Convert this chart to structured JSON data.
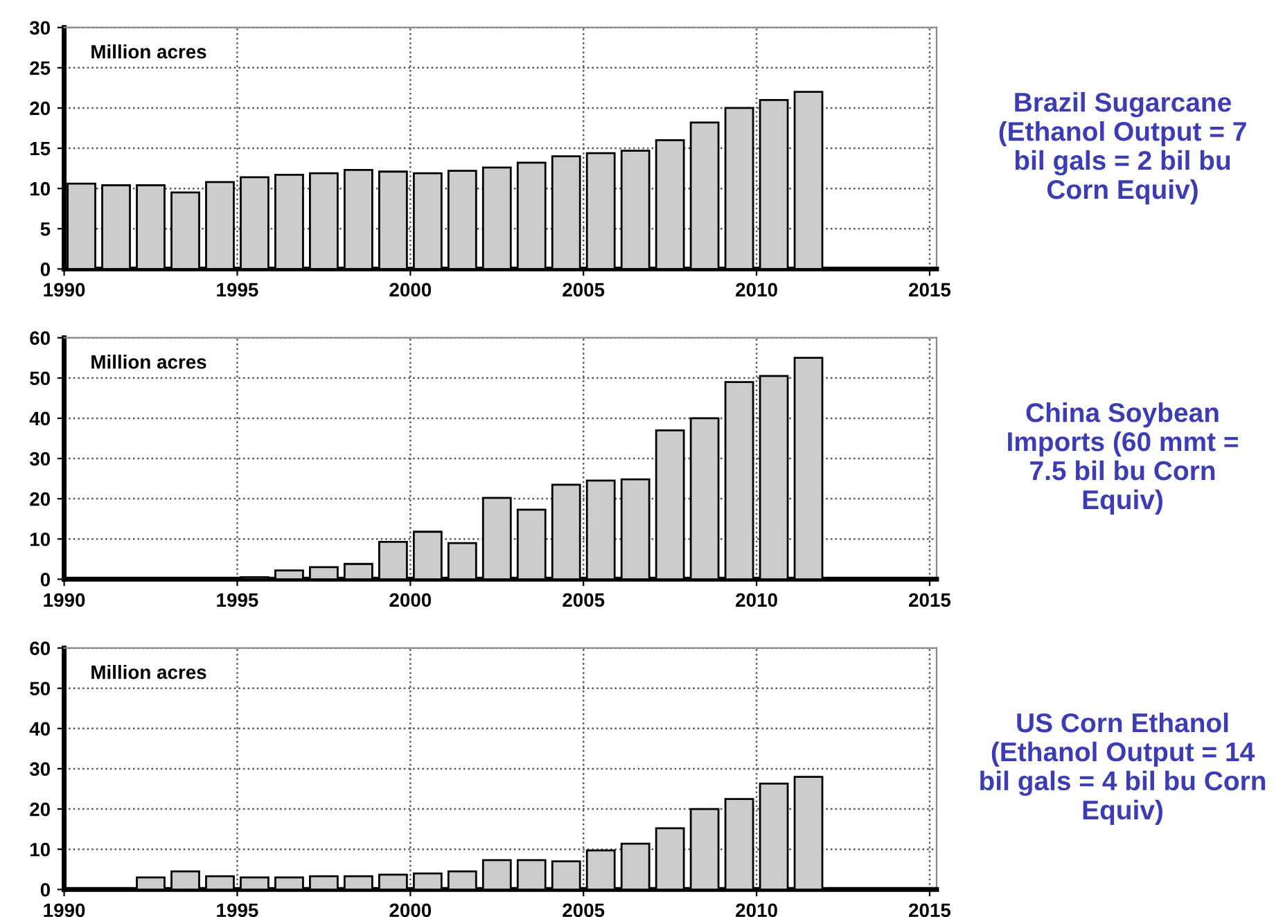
{
  "chart_data": [
    {
      "type": "bar",
      "ylabel": "Million acres",
      "annotations": [
        "Brazil Sugarcane\n(Ethanol Output = 7\nbil gals = 2 bil bu\nCorn Equiv)"
      ],
      "x": [
        1990.5,
        1991.5,
        1992.5,
        1993.5,
        1994.5,
        1995.5,
        1996.5,
        1997.5,
        1998.5,
        1999.5,
        2000.5,
        2001.5,
        2002.5,
        2003.5,
        2004.5,
        2005.5,
        2006.5,
        2007.5,
        2008.5,
        2009.5,
        2010.5,
        2011.5
      ],
      "values": [
        10.6,
        10.4,
        10.4,
        9.5,
        10.8,
        11.4,
        11.7,
        11.9,
        12.3,
        12.1,
        11.9,
        12.2,
        12.6,
        13.2,
        14.0,
        14.4,
        14.7,
        16.0,
        18.2,
        20.0,
        21.0,
        22.0
      ],
      "color": "#cccccc",
      "xlim": [
        1990,
        2015.2
      ],
      "xticks": [
        1990,
        1995,
        2000,
        2005,
        2010,
        2015
      ],
      "ylim": [
        0,
        30
      ],
      "yticks": [
        0,
        5,
        10,
        15,
        20,
        25,
        30
      ],
      "grid": true
    },
    {
      "type": "bar",
      "ylabel": "Million acres",
      "annotations": [
        "China Soybean\nImports (60 mmt =\n7.5 bil bu Corn\nEquiv)"
      ],
      "x": [
        1995.5,
        1996.5,
        1997.5,
        1998.5,
        1999.5,
        2000.5,
        2001.5,
        2002.5,
        2003.5,
        2004.5,
        2005.5,
        2006.5,
        2007.5,
        2008.5,
        2009.5,
        2010.5,
        2011.5
      ],
      "values": [
        0.5,
        2.2,
        3.0,
        3.8,
        9.3,
        11.8,
        9.0,
        20.2,
        17.3,
        23.5,
        24.5,
        24.8,
        37,
        40,
        49,
        50.5,
        55
      ],
      "color": "#cccccc",
      "xlim": [
        1990,
        2015.2
      ],
      "xticks": [
        1990,
        1995,
        2000,
        2005,
        2010,
        2015
      ],
      "ylim": [
        0,
        60
      ],
      "yticks": [
        0,
        10,
        20,
        30,
        40,
        50,
        60
      ],
      "grid": true
    },
    {
      "type": "bar",
      "ylabel": "Million acres",
      "annotations": [
        "US Corn Ethanol\n(Ethanol Output = 14\nbil gals = 4 bil bu Corn\nEquiv)"
      ],
      "x": [
        1992.5,
        1993.5,
        1994.5,
        1995.5,
        1996.5,
        1997.5,
        1998.5,
        1999.5,
        2000.5,
        2001.5,
        2002.5,
        2003.5,
        2004.5,
        2005.5,
        2006.5,
        2007.5,
        2008.5,
        2009.5,
        2010.5,
        2011.5
      ],
      "values": [
        3.0,
        4.5,
        3.3,
        3.0,
        3.0,
        3.3,
        3.3,
        3.7,
        4.0,
        4.5,
        7.3,
        7.3,
        7.0,
        9.7,
        11.4,
        15.2,
        20.0,
        22.5,
        26.3,
        28.0
      ],
      "color": "#cccccc",
      "xlim": [
        1990,
        2015.2
      ],
      "xticks": [
        1990,
        1995,
        2000,
        2005,
        2010,
        2015
      ],
      "ylim": [
        0,
        60
      ],
      "yticks": [
        0,
        10,
        20,
        30,
        40,
        50,
        60
      ],
      "grid": true
    }
  ]
}
